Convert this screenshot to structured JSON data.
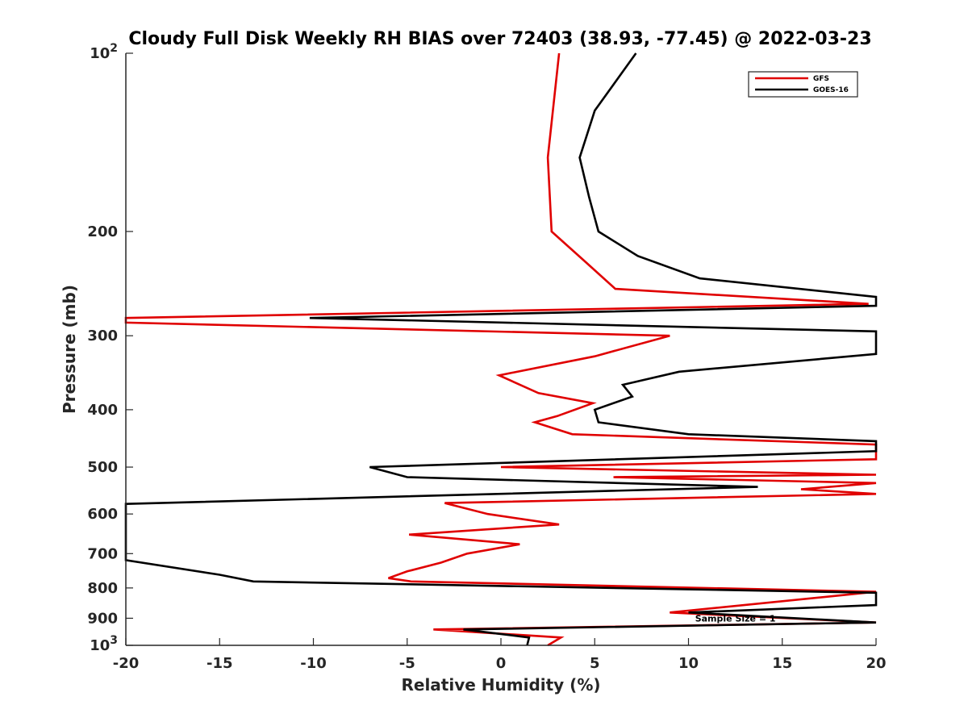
{
  "chart_data": {
    "type": "line",
    "title": "Cloudy Full Disk Weekly RH BIAS over 72403 (38.93, -77.45) @ 2022-03-23",
    "xlabel": "Relative Humidity (%)",
    "ylabel": "Pressure (mb)",
    "xlim": [
      -20,
      20
    ],
    "ylim": [
      100,
      1000
    ],
    "yscale": "log",
    "y_reversed": true,
    "grid": false,
    "legend_position": "top-right",
    "x_ticks": [
      "-20",
      "-15",
      "-10",
      "-5",
      "0",
      "5",
      "10",
      "15",
      "20"
    ],
    "y_ticks": [
      {
        "value": 100,
        "base": "10",
        "exp": "2"
      },
      {
        "value": 200,
        "label": "200"
      },
      {
        "value": 300,
        "label": "300"
      },
      {
        "value": 400,
        "label": "400"
      },
      {
        "value": 500,
        "label": "500"
      },
      {
        "value": 600,
        "label": "600"
      },
      {
        "value": 700,
        "label": "700"
      },
      {
        "value": 800,
        "label": "800"
      },
      {
        "value": 900,
        "label": "900"
      },
      {
        "value": 1000,
        "base": "10",
        "exp": "3"
      }
    ],
    "series": [
      {
        "name": "GFS",
        "color": "#e00000",
        "points": [
          [
            3.1,
            100
          ],
          [
            2.5,
            150
          ],
          [
            2.7,
            200
          ],
          [
            4.5,
            225
          ],
          [
            6.1,
            250
          ],
          [
            19.6,
            265
          ],
          [
            -20,
            280
          ],
          [
            -20,
            285
          ],
          [
            9.0,
            300
          ],
          [
            5.0,
            325
          ],
          [
            -0.1,
            350
          ],
          [
            2.0,
            375
          ],
          [
            4.9,
            390
          ],
          [
            3.0,
            410
          ],
          [
            1.8,
            420
          ],
          [
            3.8,
            440
          ],
          [
            20,
            458
          ],
          [
            20,
            485
          ],
          [
            0,
            500
          ],
          [
            20,
            515
          ],
          [
            6.0,
            520
          ],
          [
            20,
            532
          ],
          [
            16,
            545
          ],
          [
            20,
            555
          ],
          [
            -3.0,
            575
          ],
          [
            -0.7,
            600
          ],
          [
            3.1,
            625
          ],
          [
            -4.9,
            650
          ],
          [
            1.0,
            675
          ],
          [
            -1.8,
            700
          ],
          [
            -3.2,
            725
          ],
          [
            -5.0,
            750
          ],
          [
            -6.0,
            770
          ],
          [
            -4.8,
            780
          ],
          [
            20,
            812
          ],
          [
            9.0,
            880
          ],
          [
            20,
            915
          ],
          [
            -3.6,
            940
          ],
          [
            3.2,
            970
          ],
          [
            2.5,
            1000
          ]
        ]
      },
      {
        "name": "GOES-16",
        "color": "#000000",
        "points": [
          [
            7.2,
            100
          ],
          [
            5.0,
            125
          ],
          [
            4.2,
            150
          ],
          [
            4.7,
            175
          ],
          [
            5.2,
            200
          ],
          [
            7.3,
            220
          ],
          [
            10.6,
            240
          ],
          [
            20,
            258
          ],
          [
            20,
            267
          ],
          [
            -10.2,
            280
          ],
          [
            20,
            295
          ],
          [
            20,
            322
          ],
          [
            9.5,
            345
          ],
          [
            6.5,
            363
          ],
          [
            7.0,
            380
          ],
          [
            5.0,
            400
          ],
          [
            5.2,
            420
          ],
          [
            10.0,
            440
          ],
          [
            20,
            452
          ],
          [
            20,
            470
          ],
          [
            -7.0,
            500
          ],
          [
            -5.0,
            520
          ],
          [
            13.7,
            540
          ],
          [
            -20,
            577
          ],
          [
            -20,
            718
          ],
          [
            -15.0,
            760
          ],
          [
            -13.2,
            780
          ],
          [
            20,
            815
          ],
          [
            20,
            855
          ],
          [
            10.0,
            880
          ],
          [
            20,
            915
          ],
          [
            -2.0,
            940
          ],
          [
            1.5,
            970
          ],
          [
            1.4,
            1000
          ]
        ]
      }
    ],
    "annotations": [
      {
        "text": "Sample Size = 1",
        "x": 12.5,
        "y": 900
      }
    ]
  }
}
